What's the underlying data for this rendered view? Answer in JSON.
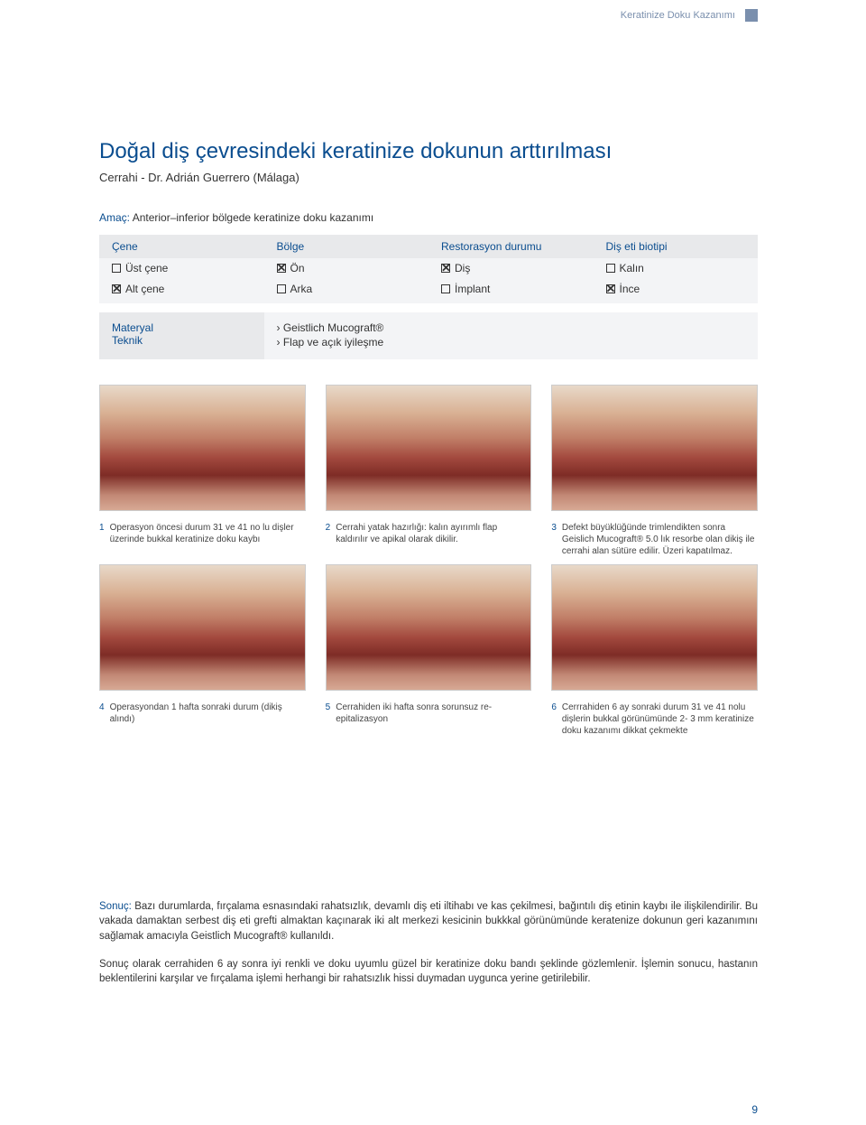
{
  "breadcrumb": "Keratinize Doku Kazanımı",
  "title": "Doğal diş çevresindeki keratinize dokunun arttırılması",
  "subtitle": "Cerrahi - Dr. Adrián Guerrero (Málaga)",
  "amac": {
    "label": "Amaç:",
    "text": "Anterior–inferior bölgede keratinize doku kazanımı"
  },
  "table": {
    "headers": [
      "Çene",
      "Bölge",
      "Restorasyon durumu",
      "Diş eti biotipi"
    ],
    "rows": [
      [
        {
          "label": "Üst çene",
          "checked": false
        },
        {
          "label": "Ön",
          "checked": true
        },
        {
          "label": "Diş",
          "checked": true
        },
        {
          "label": "Kalın",
          "checked": false
        }
      ],
      [
        {
          "label": "Alt çene",
          "checked": true
        },
        {
          "label": "Arka",
          "checked": false
        },
        {
          "label": "İmplant",
          "checked": false
        },
        {
          "label": "İnce",
          "checked": true
        }
      ]
    ]
  },
  "materyal": {
    "left": [
      "Materyal",
      "Teknik"
    ],
    "right": [
      "› Geistlich Mucograft®",
      "› Flap ve açık iyileşme"
    ]
  },
  "captions": [
    {
      "n": "1",
      "t": "Operasyon öncesi durum 31 ve 41 no lu dişler üzerinde bukkal keratinize doku kaybı"
    },
    {
      "n": "2",
      "t": "Cerrahi yatak hazırlığı: kalın ayırımlı flap kaldırılır ve apikal olarak dikilir."
    },
    {
      "n": "3",
      "t": "Defekt büyüklüğünde trimlendikten sonra Geislich Mucograft® 5.0 lık resorbe olan dikiş ile cerrahi alan sütüre edilir. Üzeri kapatılmaz."
    },
    {
      "n": "4",
      "t": "Operasyondan 1 hafta sonraki durum (dikiş alındı)"
    },
    {
      "n": "5",
      "t": "Cerrahiden iki hafta sonra sorunsuz re-epitalizasyon"
    },
    {
      "n": "6",
      "t": "Cerrrahiden 6 ay sonraki durum 31 ve 41 nolu dişlerin bukkal görünümünde 2- 3 mm keratinize doku kazanımı dikkat çekmekte"
    }
  ],
  "sonuc": {
    "label": "Sonuç:",
    "p1": "Bazı durumlarda, fırçalama esnasındaki rahatsızlık, devamlı diş eti iltihabı ve kas çekilmesi, bağıntılı  diş etinin kaybı ile ilişkilendirilir. Bu vakada damaktan serbest diş eti grefti almaktan kaçınarak iki alt merkezi kesicinin bukkkal görünümünde keratenize dokunun geri kazanımını sağlamak amacıyla Geistlich Mucograft® kullanıldı.",
    "p2": "Sonuç olarak cerrahiden 6 ay sonra iyi renkli ve doku uyumlu güzel bir keratinize doku bandı şeklinde gözlemlenir. İşlemin sonucu, hastanın beklentilerini karşılar ve fırçalama işlemi  herhangi bir rahatsızlık hissi duymadan uygunca yerine getirilebilir."
  },
  "page_number": "9",
  "colors": {
    "accent": "#0a4d8f",
    "header_bg": "#e8e9eb",
    "cell_bg": "#f3f4f6"
  }
}
